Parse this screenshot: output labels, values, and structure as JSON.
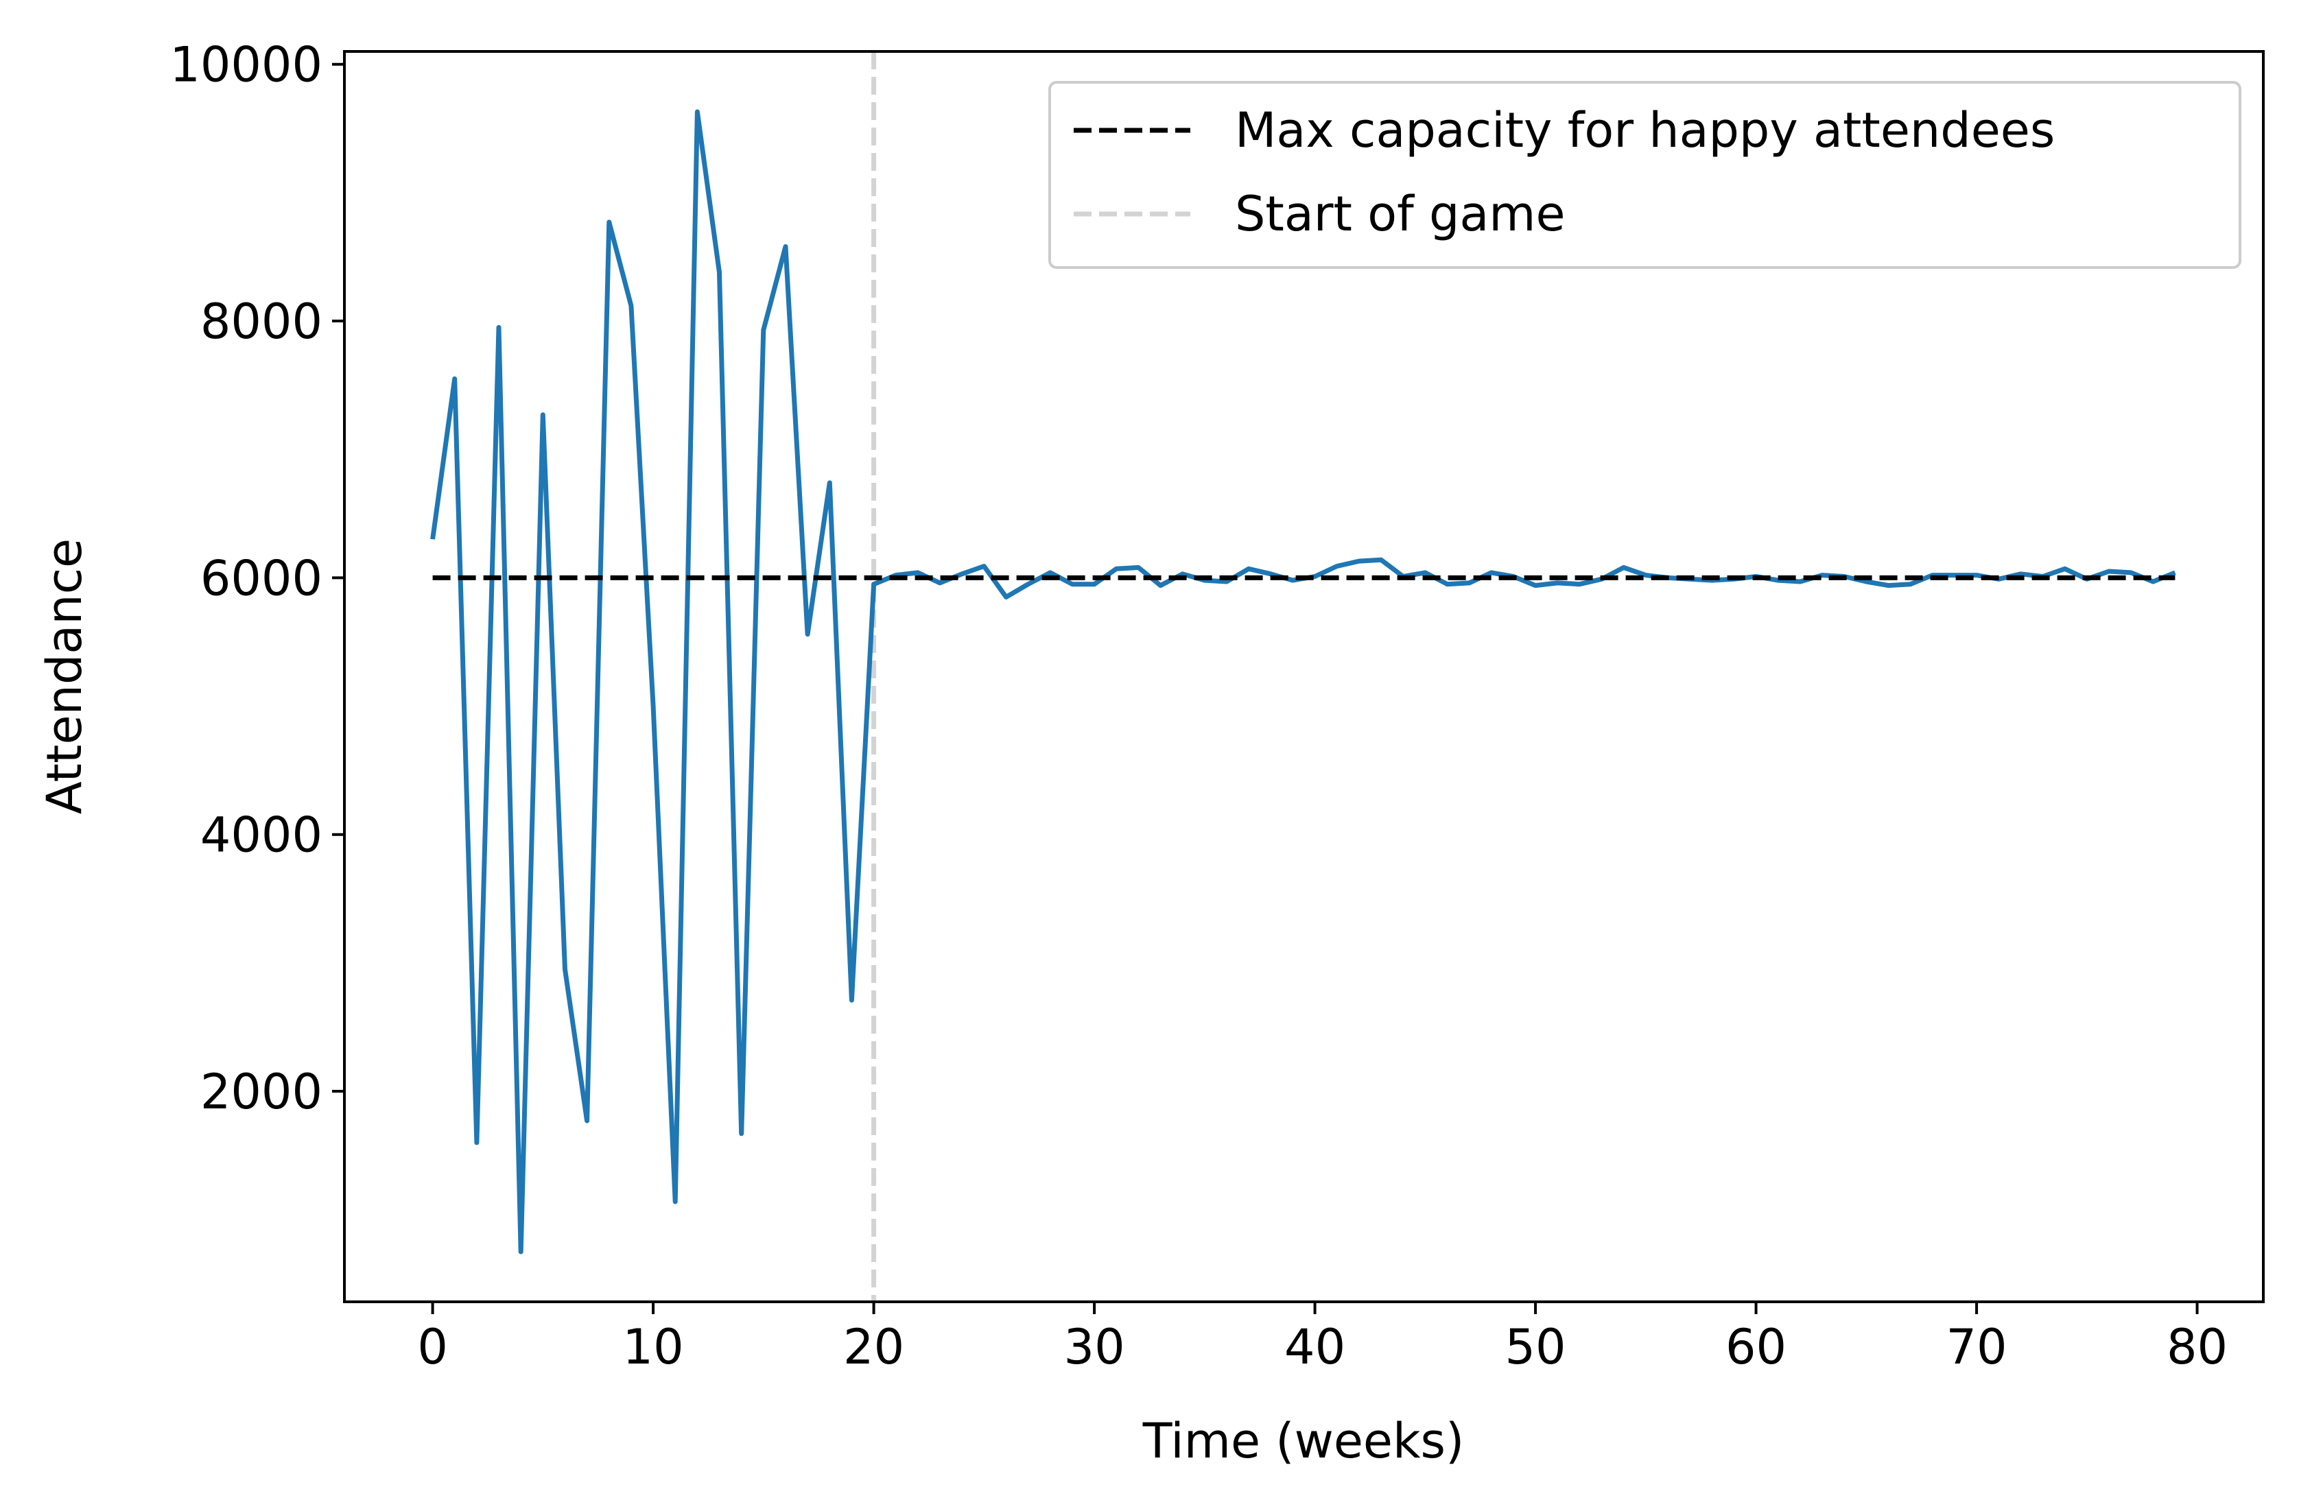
{
  "chart_data": {
    "type": "line",
    "title": "",
    "xlabel": "Time (weeks)",
    "ylabel": "Attendance",
    "xlim": [
      -4,
      83
    ],
    "ylim": [
      360,
      10100
    ],
    "xticks": [
      0,
      10,
      20,
      30,
      40,
      50,
      60,
      70,
      80
    ],
    "yticks": [
      2000,
      4000,
      6000,
      8000,
      10000
    ],
    "grid": false,
    "legend_position": "top-right",
    "series": [
      {
        "name": "",
        "color": "#1f77b4",
        "style": "solid",
        "x": [
          0,
          1,
          2,
          3,
          4,
          5,
          6,
          7,
          8,
          9,
          10,
          11,
          12,
          13,
          14,
          15,
          16,
          17,
          18,
          19,
          20,
          21,
          22,
          23,
          24,
          25,
          26,
          27,
          28,
          29,
          30,
          31,
          32,
          33,
          34,
          35,
          36,
          37,
          38,
          39,
          40,
          41,
          42,
          43,
          44,
          45,
          46,
          47,
          48,
          49,
          50,
          51,
          52,
          53,
          54,
          55,
          56,
          57,
          58,
          59,
          60,
          61,
          62,
          63,
          64,
          65,
          66,
          67,
          68,
          69,
          70,
          71,
          72,
          73,
          74,
          75,
          76,
          77,
          78,
          79
        ],
        "values": [
          6300,
          7550,
          1600,
          7950,
          750,
          7270,
          2950,
          1770,
          8770,
          8120,
          5000,
          1140,
          9630,
          8380,
          1670,
          7930,
          8580,
          5560,
          6740,
          2710,
          5950,
          6020,
          6040,
          5960,
          6030,
          6090,
          5850,
          5950,
          6040,
          5950,
          5950,
          6070,
          6080,
          5940,
          6030,
          5980,
          5970,
          6070,
          6030,
          5980,
          6010,
          6090,
          6130,
          6140,
          6010,
          6040,
          5950,
          5960,
          6040,
          6010,
          5940,
          5960,
          5950,
          5990,
          6080,
          6020,
          6000,
          5990,
          5980,
          5990,
          6010,
          5980,
          5970,
          6020,
          6010,
          5970,
          5940,
          5950,
          6020,
          6020,
          6020,
          5990,
          6030,
          6010,
          6070,
          5990,
          6050,
          6040,
          5970,
          6040
        ]
      },
      {
        "name": "Max capacity for happy attendees",
        "color": "#000000",
        "style": "dashed",
        "x": [
          0,
          79
        ],
        "values": [
          6000,
          6000
        ]
      }
    ],
    "vlines": [
      {
        "name": "Start of game",
        "x": 20,
        "color": "#d3d3d3",
        "style": "dashed"
      }
    ]
  }
}
